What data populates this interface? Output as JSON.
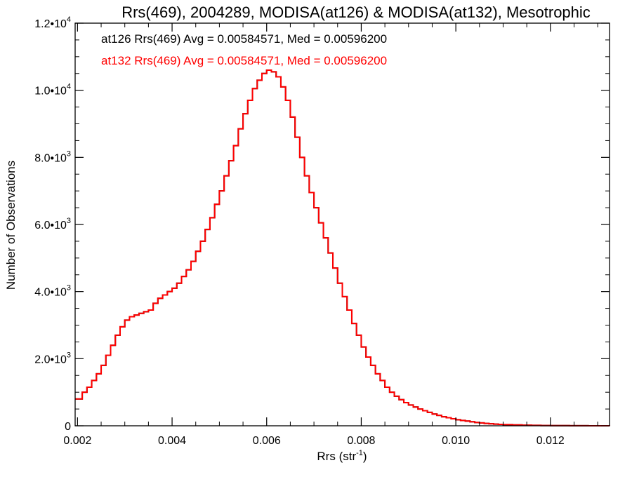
{
  "chart_data": {
    "type": "line",
    "title": "Rrs(469), 2004289, MODISA(at126) & MODISA(at132), Mesotrophic",
    "xlabel_base": "Rrs (str",
    "xlabel_sup": "-1",
    "xlabel_end": ")",
    "ylabel": "Number of Observations",
    "xlim": [
      0.00195,
      0.01325
    ],
    "ylim": [
      0,
      12000
    ],
    "grid": false,
    "x_ticks": [
      {
        "value": 0.002,
        "label": "0.002"
      },
      {
        "value": 0.004,
        "label": "0.004"
      },
      {
        "value": 0.006,
        "label": "0.006"
      },
      {
        "value": 0.008,
        "label": "0.008"
      },
      {
        "value": 0.01,
        "label": "0.010"
      },
      {
        "value": 0.012,
        "label": "0.012"
      }
    ],
    "y_ticks": [
      {
        "value": 0,
        "label": "0",
        "exp": ""
      },
      {
        "value": 2000,
        "label": "2.0•10",
        "exp": "3"
      },
      {
        "value": 4000,
        "label": "4.0•10",
        "exp": "3"
      },
      {
        "value": 6000,
        "label": "6.0•10",
        "exp": "3"
      },
      {
        "value": 8000,
        "label": "8.0•10",
        "exp": "3"
      },
      {
        "value": 10000,
        "label": "1.0•10",
        "exp": "4"
      },
      {
        "value": 12000,
        "label": "1.2•10",
        "exp": "4"
      }
    ],
    "annotations": [
      {
        "text": "at126 Rrs(469) Avg = 0.00584571, Med = 0.00596200",
        "color": "#000000"
      },
      {
        "text": "at132 Rrs(469) Avg = 0.00584571, Med = 0.00596200",
        "color": "#ff0000"
      }
    ],
    "series": [
      {
        "color": "#000000",
        "x": [
          0.00195,
          0.0021,
          0.0022,
          0.0023,
          0.0024,
          0.0025,
          0.0026,
          0.0027,
          0.0028,
          0.0029,
          0.003,
          0.0031,
          0.0032,
          0.0033,
          0.0034,
          0.0035,
          0.0036,
          0.0037,
          0.0038,
          0.0039,
          0.004,
          0.0041,
          0.0042,
          0.0043,
          0.0044,
          0.0045,
          0.0046,
          0.0047,
          0.0048,
          0.0049,
          0.005,
          0.0051,
          0.0052,
          0.0053,
          0.0054,
          0.0055,
          0.0056,
          0.0057,
          0.0058,
          0.0059,
          0.006,
          0.0061,
          0.0062,
          0.0063,
          0.0064,
          0.0065,
          0.0066,
          0.0067,
          0.0068,
          0.0069,
          0.007,
          0.0071,
          0.0072,
          0.0073,
          0.0074,
          0.0075,
          0.0076,
          0.0077,
          0.0078,
          0.0079,
          0.008,
          0.0081,
          0.0082,
          0.0083,
          0.0084,
          0.0085,
          0.0086,
          0.0087,
          0.0088,
          0.0089,
          0.009,
          0.0091,
          0.0092,
          0.0093,
          0.0094,
          0.0095,
          0.0096,
          0.0097,
          0.0098,
          0.0099,
          0.01,
          0.0101,
          0.0102,
          0.0103,
          0.0104,
          0.0105,
          0.0106,
          0.0107,
          0.0108,
          0.0109,
          0.011,
          0.0112,
          0.0114,
          0.0116,
          0.0118,
          0.012,
          0.0122,
          0.0124,
          0.0126,
          0.0128,
          0.013,
          0.01325
        ],
        "y": [
          800,
          1000,
          1150,
          1350,
          1550,
          1800,
          2100,
          2400,
          2700,
          2950,
          3150,
          3250,
          3300,
          3350,
          3400,
          3450,
          3650,
          3800,
          3900,
          4000,
          4100,
          4250,
          4450,
          4650,
          4900,
          5200,
          5500,
          5850,
          6200,
          6600,
          7000,
          7450,
          7900,
          8350,
          8850,
          9300,
          9700,
          10050,
          10300,
          10500,
          10600,
          10550,
          10400,
          10100,
          9700,
          9200,
          8600,
          8000,
          7450,
          6950,
          6500,
          6050,
          5600,
          5150,
          4700,
          4250,
          3850,
          3450,
          3050,
          2700,
          2350,
          2050,
          1800,
          1550,
          1350,
          1150,
          1000,
          880,
          780,
          690,
          620,
          560,
          500,
          450,
          400,
          350,
          310,
          270,
          240,
          210,
          180,
          160,
          140,
          120,
          100,
          85,
          70,
          60,
          50,
          42,
          35,
          25,
          18,
          12,
          8,
          5,
          4,
          3,
          2,
          1,
          1,
          0
        ]
      },
      {
        "color": "#ff0000",
        "x": [
          0.00195,
          0.0021,
          0.0022,
          0.0023,
          0.0024,
          0.0025,
          0.0026,
          0.0027,
          0.0028,
          0.0029,
          0.003,
          0.0031,
          0.0032,
          0.0033,
          0.0034,
          0.0035,
          0.0036,
          0.0037,
          0.0038,
          0.0039,
          0.004,
          0.0041,
          0.0042,
          0.0043,
          0.0044,
          0.0045,
          0.0046,
          0.0047,
          0.0048,
          0.0049,
          0.005,
          0.0051,
          0.0052,
          0.0053,
          0.0054,
          0.0055,
          0.0056,
          0.0057,
          0.0058,
          0.0059,
          0.006,
          0.0061,
          0.0062,
          0.0063,
          0.0064,
          0.0065,
          0.0066,
          0.0067,
          0.0068,
          0.0069,
          0.007,
          0.0071,
          0.0072,
          0.0073,
          0.0074,
          0.0075,
          0.0076,
          0.0077,
          0.0078,
          0.0079,
          0.008,
          0.0081,
          0.0082,
          0.0083,
          0.0084,
          0.0085,
          0.0086,
          0.0087,
          0.0088,
          0.0089,
          0.009,
          0.0091,
          0.0092,
          0.0093,
          0.0094,
          0.0095,
          0.0096,
          0.0097,
          0.0098,
          0.0099,
          0.01,
          0.0101,
          0.0102,
          0.0103,
          0.0104,
          0.0105,
          0.0106,
          0.0107,
          0.0108,
          0.0109,
          0.011,
          0.0112,
          0.0114,
          0.0116,
          0.0118,
          0.012,
          0.0122,
          0.0124,
          0.0126,
          0.0128,
          0.013,
          0.01325
        ],
        "y": [
          800,
          1000,
          1150,
          1350,
          1550,
          1800,
          2100,
          2400,
          2700,
          2950,
          3150,
          3250,
          3300,
          3350,
          3400,
          3450,
          3650,
          3800,
          3900,
          4000,
          4100,
          4250,
          4450,
          4650,
          4900,
          5200,
          5500,
          5850,
          6200,
          6600,
          7000,
          7450,
          7900,
          8350,
          8850,
          9300,
          9700,
          10050,
          10300,
          10500,
          10600,
          10550,
          10400,
          10100,
          9700,
          9200,
          8600,
          8000,
          7450,
          6950,
          6500,
          6050,
          5600,
          5150,
          4700,
          4250,
          3850,
          3450,
          3050,
          2700,
          2350,
          2050,
          1800,
          1550,
          1350,
          1150,
          1000,
          880,
          780,
          690,
          620,
          560,
          500,
          450,
          400,
          350,
          310,
          270,
          240,
          210,
          180,
          160,
          140,
          120,
          100,
          85,
          70,
          60,
          50,
          42,
          35,
          25,
          18,
          12,
          8,
          5,
          4,
          3,
          2,
          1,
          1,
          0
        ]
      }
    ]
  }
}
